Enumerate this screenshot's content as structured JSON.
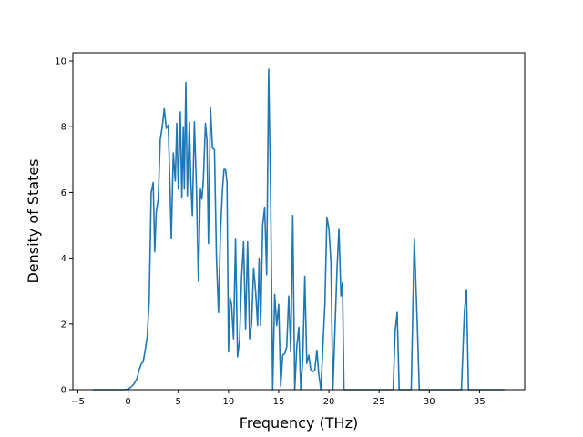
{
  "chart_data": {
    "type": "line",
    "title": "",
    "xlabel": "Frequency (THz)",
    "ylabel": "Density of States",
    "xlim": [
      -5.5,
      39.5
    ],
    "ylim": [
      0,
      10.25
    ],
    "xticks": [
      -5,
      0,
      5,
      10,
      15,
      20,
      25,
      30,
      35
    ],
    "yticks": [
      0,
      2,
      4,
      6,
      8,
      10
    ],
    "grid": false,
    "legend": "none",
    "line_color": "#1f77b4",
    "series": [
      {
        "points": [
          [
            -3.5,
            0.0
          ],
          [
            -0.3,
            0.0
          ],
          [
            0.0,
            0.02
          ],
          [
            0.3,
            0.08
          ],
          [
            0.6,
            0.18
          ],
          [
            0.9,
            0.35
          ],
          [
            1.1,
            0.6
          ],
          [
            1.3,
            0.78
          ],
          [
            1.5,
            0.85
          ],
          [
            1.7,
            1.2
          ],
          [
            1.9,
            1.6
          ],
          [
            2.1,
            2.7
          ],
          [
            2.3,
            6.0
          ],
          [
            2.5,
            6.3
          ],
          [
            2.65,
            4.2
          ],
          [
            2.8,
            5.4
          ],
          [
            3.0,
            5.8
          ],
          [
            3.2,
            7.6
          ],
          [
            3.4,
            8.0
          ],
          [
            3.6,
            8.55
          ],
          [
            3.8,
            7.95
          ],
          [
            4.0,
            8.05
          ],
          [
            4.15,
            6.4
          ],
          [
            4.3,
            4.6
          ],
          [
            4.5,
            7.2
          ],
          [
            4.7,
            6.35
          ],
          [
            4.85,
            8.1
          ],
          [
            5.0,
            6.1
          ],
          [
            5.2,
            8.45
          ],
          [
            5.35,
            5.85
          ],
          [
            5.5,
            8.0
          ],
          [
            5.6,
            6.1
          ],
          [
            5.75,
            9.35
          ],
          [
            5.9,
            5.9
          ],
          [
            6.1,
            8.15
          ],
          [
            6.25,
            6.3
          ],
          [
            6.4,
            5.3
          ],
          [
            6.6,
            8.15
          ],
          [
            6.8,
            6.2
          ],
          [
            7.0,
            3.3
          ],
          [
            7.2,
            6.1
          ],
          [
            7.35,
            5.8
          ],
          [
            7.5,
            6.4
          ],
          [
            7.7,
            8.1
          ],
          [
            7.85,
            7.6
          ],
          [
            8.0,
            4.45
          ],
          [
            8.2,
            8.6
          ],
          [
            8.4,
            7.35
          ],
          [
            8.6,
            7.3
          ],
          [
            8.8,
            4.0
          ],
          [
            9.0,
            2.35
          ],
          [
            9.2,
            4.8
          ],
          [
            9.4,
            6.1
          ],
          [
            9.55,
            6.7
          ],
          [
            9.7,
            6.7
          ],
          [
            9.85,
            6.3
          ],
          [
            10.0,
            1.15
          ],
          [
            10.15,
            2.8
          ],
          [
            10.3,
            2.6
          ],
          [
            10.5,
            1.55
          ],
          [
            10.7,
            4.6
          ],
          [
            10.9,
            1.0
          ],
          [
            11.1,
            1.5
          ],
          [
            11.3,
            3.4
          ],
          [
            11.5,
            4.5
          ],
          [
            11.7,
            1.85
          ],
          [
            11.9,
            4.5
          ],
          [
            12.1,
            1.55
          ],
          [
            12.3,
            2.0
          ],
          [
            12.5,
            3.7
          ],
          [
            12.7,
            3.0
          ],
          [
            12.9,
            1.95
          ],
          [
            13.05,
            4.0
          ],
          [
            13.2,
            1.95
          ],
          [
            13.4,
            5.0
          ],
          [
            13.6,
            5.55
          ],
          [
            13.8,
            3.5
          ],
          [
            14.0,
            9.75
          ],
          [
            14.2,
            5.8
          ],
          [
            14.4,
            0.0
          ],
          [
            14.6,
            2.9
          ],
          [
            14.8,
            1.95
          ],
          [
            15.0,
            2.6
          ],
          [
            15.2,
            0.1
          ],
          [
            15.4,
            1.05
          ],
          [
            15.6,
            1.1
          ],
          [
            15.8,
            1.3
          ],
          [
            16.0,
            2.85
          ],
          [
            16.2,
            1.15
          ],
          [
            16.4,
            5.3
          ],
          [
            16.6,
            0.0
          ],
          [
            16.8,
            1.3
          ],
          [
            17.0,
            1.9
          ],
          [
            17.2,
            0.0
          ],
          [
            17.4,
            0.95
          ],
          [
            17.6,
            3.45
          ],
          [
            17.8,
            0.8
          ],
          [
            18.0,
            1.05
          ],
          [
            18.2,
            0.6
          ],
          [
            18.4,
            0.55
          ],
          [
            18.6,
            0.6
          ],
          [
            18.8,
            1.2
          ],
          [
            19.0,
            0.45
          ],
          [
            19.2,
            0.0
          ],
          [
            19.6,
            2.6
          ],
          [
            19.8,
            5.25
          ],
          [
            20.0,
            4.9
          ],
          [
            20.2,
            3.9
          ],
          [
            20.4,
            0.0
          ],
          [
            20.8,
            3.6
          ],
          [
            21.0,
            4.9
          ],
          [
            21.2,
            2.85
          ],
          [
            21.35,
            3.25
          ],
          [
            21.5,
            0.0
          ],
          [
            26.4,
            0.0
          ],
          [
            26.6,
            1.8
          ],
          [
            26.8,
            2.35
          ],
          [
            27.0,
            0.0
          ],
          [
            28.2,
            0.0
          ],
          [
            28.5,
            4.6
          ],
          [
            28.8,
            2.0
          ],
          [
            29.0,
            0.0
          ],
          [
            33.2,
            0.0
          ],
          [
            33.5,
            2.4
          ],
          [
            33.7,
            3.05
          ],
          [
            33.9,
            0.0
          ],
          [
            37.5,
            0.0
          ]
        ]
      }
    ]
  }
}
